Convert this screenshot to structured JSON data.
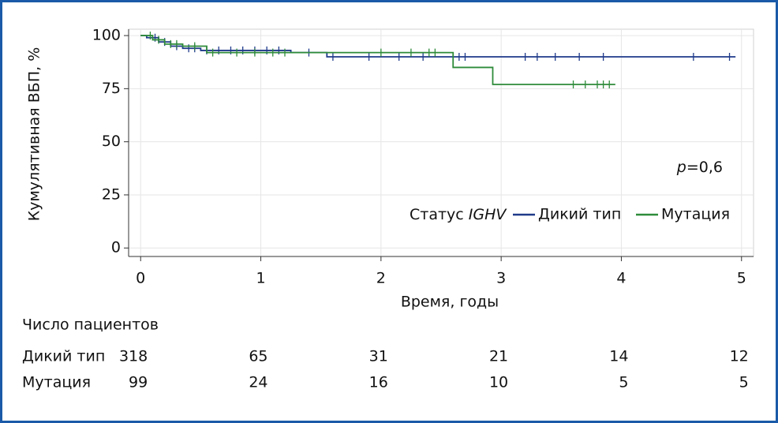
{
  "chart_data": {
    "type": "line",
    "step": true,
    "y_label": "Кумулятивная ВБП, %",
    "x_label": "Время, годы",
    "xlim": [
      -0.1,
      5.1
    ],
    "xticks": [
      0,
      1,
      2,
      3,
      4,
      5
    ],
    "ylim": [
      -4,
      103
    ],
    "yticks": [
      0,
      25,
      50,
      75,
      100
    ],
    "grid": true,
    "legend_title": {
      "text": "Статус",
      "italic": "IGHV"
    },
    "annotation": {
      "italic": "p",
      "text": "=0,6"
    },
    "series": [
      {
        "name": "Дикий тип",
        "color": "#1f3a8a",
        "x": [
          0,
          0.05,
          0.15,
          0.25,
          0.35,
          0.5,
          1.25,
          1.55,
          4.95
        ],
        "values": [
          100,
          99,
          97,
          95,
          94,
          93,
          92,
          90,
          90
        ],
        "censored": {
          "x": [
            0.12,
            0.2,
            0.3,
            0.4,
            0.45,
            0.55,
            0.65,
            0.75,
            0.85,
            0.95,
            1.05,
            1.15,
            1.4,
            1.6,
            1.9,
            2.15,
            2.35,
            2.6,
            2.65,
            2.7,
            3.2,
            3.3,
            3.45,
            3.65,
            3.85,
            4.6,
            4.9
          ],
          "values": [
            99,
            97,
            95,
            94,
            94,
            93,
            93,
            93,
            93,
            93,
            93,
            93,
            92,
            90,
            90,
            90,
            90,
            90,
            90,
            90,
            90,
            90,
            90,
            90,
            90,
            90,
            90
          ]
        }
      },
      {
        "name": "Мутация",
        "color": "#2e8b3a",
        "x": [
          0,
          0.1,
          0.2,
          0.35,
          0.55,
          2.6,
          2.93,
          3.95
        ],
        "values": [
          100,
          98,
          96,
          95,
          92,
          85,
          77,
          77
        ],
        "censored": {
          "x": [
            0.08,
            0.15,
            0.25,
            0.3,
            0.45,
            0.6,
            0.8,
            0.95,
            1.1,
            1.2,
            2.0,
            2.25,
            2.4,
            2.45,
            3.6,
            3.7,
            3.8,
            3.85,
            3.9
          ],
          "values": [
            100,
            98,
            96,
            96,
            95,
            92,
            92,
            92,
            92,
            92,
            92,
            92,
            92,
            92,
            77,
            77,
            77,
            77,
            77
          ]
        }
      }
    ],
    "risk_table": {
      "title": "Число пациентов",
      "rows": [
        {
          "name": "Дикий тип",
          "counts": [
            318,
            65,
            31,
            21,
            14,
            12
          ]
        },
        {
          "name": "Мутация",
          "counts": [
            99,
            24,
            16,
            10,
            5,
            5
          ]
        }
      ]
    }
  }
}
